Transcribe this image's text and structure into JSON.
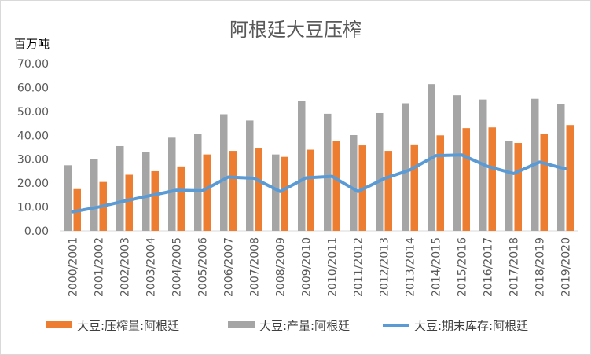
{
  "chart_data": {
    "type": "bar",
    "title": "阿根廷大豆压榨",
    "ylabel": "百万吨",
    "ylim": [
      0,
      70
    ],
    "yticks": [
      "0.00",
      "10.00",
      "20.00",
      "30.00",
      "40.00",
      "50.00",
      "60.00",
      "70.00"
    ],
    "grid": false,
    "legend_position": "bottom",
    "categories": [
      "2000/2001",
      "2001/2002",
      "2002/2003",
      "2003/2004",
      "2004/2005",
      "2005/2006",
      "2006/2007",
      "2007/2008",
      "2008/2009",
      "2009/2010",
      "2010/2011",
      "2011/2012",
      "2012/2013",
      "2013/2014",
      "2014/2015",
      "2015/2016",
      "2016/2017",
      "2017/2018",
      "2018/2019",
      "2019/2020"
    ],
    "series": [
      {
        "name": "大豆:压榨量:阿根廷",
        "kind": "bar",
        "color": "#ED7D31",
        "values": [
          17.5,
          20.5,
          23.5,
          25.0,
          27.0,
          32.0,
          33.5,
          34.5,
          31.0,
          34.0,
          37.5,
          35.8,
          33.5,
          36.2,
          40.0,
          43.0,
          43.3,
          36.8,
          40.5,
          44.3
        ]
      },
      {
        "name": "大豆:产量:阿根廷",
        "kind": "bar",
        "color": "#A5A5A5",
        "values": [
          27.5,
          30.0,
          35.5,
          33.0,
          39.0,
          40.5,
          48.8,
          46.2,
          32.0,
          54.5,
          49.0,
          40.1,
          49.3,
          53.4,
          61.4,
          56.8,
          55.0,
          37.8,
          55.3,
          53.0
        ]
      },
      {
        "name": "大豆:期末库存:阿根廷",
        "kind": "line",
        "color": "#5B9BD5",
        "values": [
          8.0,
          10.0,
          12.5,
          14.8,
          17.0,
          16.8,
          22.5,
          22.0,
          16.5,
          22.2,
          22.8,
          16.5,
          21.8,
          25.5,
          31.5,
          31.8,
          27.0,
          24.0,
          28.8,
          26.0
        ]
      }
    ]
  }
}
